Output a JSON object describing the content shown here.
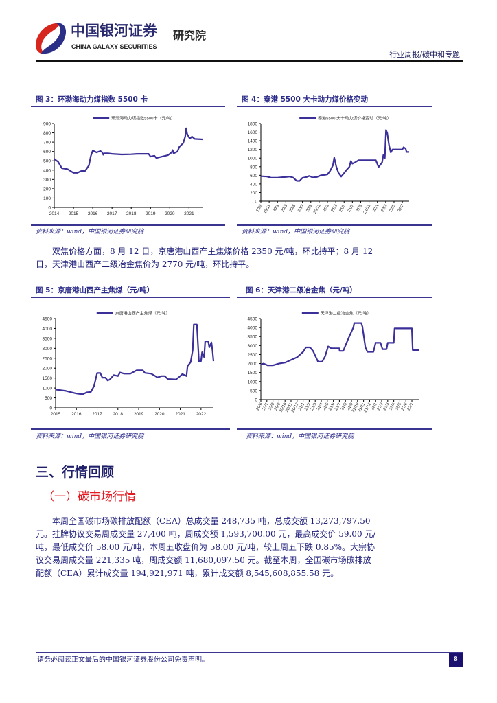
{
  "header": {
    "brand_cn": "中国银河证券",
    "brand_en": "CHINA GALAXY SECURITIES",
    "institute": "研究院",
    "report_tag": "行业周报/碳中和专题"
  },
  "figures": [
    {
      "title": "图 3：环渤海动力煤指数 5500 卡",
      "source": "资料来源：wind，中国银河证券研究院"
    },
    {
      "title": "图 4：秦港 5500 大卡动力煤价格变动",
      "source": "资料来源：wind，中国银河证券研究院"
    },
    {
      "title": "图 5：京唐港山西产主焦煤（元/吨）",
      "source": "资料来源：wind，中国银河证券研究院"
    },
    {
      "title": "图 6：天津港二级冶金焦（元/吨）",
      "source": "资料来源：wind，中国银河证券研究院"
    }
  ],
  "text": {
    "coke_paragraph": "双焦价格方面，8 月 12 日，京唐港山西产主焦煤价格 2350 元/吨，环比持平；8 月 12 日，天津港山西产二级冶金焦价为 2770 元/吨，环比持平。",
    "section_heading": "三、行情回顾",
    "subsection_heading": "（一）碳市场行情",
    "carbon_paragraph": "本周全国碳市场碳排放配额（CEA）总成交量 248,735 吨，总成交额 13,273,797.50 元。挂牌协议交易周成交量 27,400 吨，周成交额 1,593,700.00 元，最高成交价 59.00 元/吨，最低成交价 58.00 元/吨，本周五收盘价为 58.00 元/吨，较上周五下跌 0.85%。大宗协议交易周成交量 221,335 吨，周成交额 11,680,097.50 元。截至本周，全国碳市场碳排放配额（CEA）累计成交量 194,921,971 吨，累计成交额 8,545,608,855.58 元。"
  },
  "footer": {
    "disclaimer": "请务必阅读正文最后的中国银河证券股份公司免责声明。",
    "page_number": "8"
  },
  "colors": {
    "line": "#3b2f9a",
    "rule": "#3a3590",
    "logo_red": "#d7261e",
    "logo_blue": "#2b2f86",
    "subheading_red": "#e31b23"
  },
  "chart_data": [
    {
      "type": "line",
      "x_type": "year",
      "legend": "环渤海动力煤指数5500卡（元/吨）",
      "legend_placement": "top",
      "xlim": [
        2014,
        2021.7
      ],
      "ylim": [
        0,
        900
      ],
      "yticks": [
        0,
        100,
        200,
        300,
        400,
        500,
        600,
        700,
        800,
        900
      ],
      "xticks": [
        "2014",
        "2015",
        "2016",
        "2017",
        "2018",
        "2019",
        "2020",
        "2021"
      ],
      "points": [
        [
          2014.0,
          520
        ],
        [
          2014.2,
          490
        ],
        [
          2014.4,
          420
        ],
        [
          2014.7,
          410
        ],
        [
          2015.0,
          370
        ],
        [
          2015.2,
          370
        ],
        [
          2015.4,
          390
        ],
        [
          2015.6,
          390
        ],
        [
          2015.8,
          450
        ],
        [
          2015.9,
          550
        ],
        [
          2016.0,
          610
        ],
        [
          2016.2,
          590
        ],
        [
          2016.4,
          605
        ],
        [
          2016.5,
          590
        ],
        [
          2016.55,
          565
        ],
        [
          2016.6,
          580
        ],
        [
          2016.8,
          580
        ],
        [
          2017.0,
          575
        ],
        [
          2017.5,
          568
        ],
        [
          2018.0,
          570
        ],
        [
          2018.3,
          575
        ],
        [
          2018.9,
          575
        ],
        [
          2019.0,
          545
        ],
        [
          2019.2,
          555
        ],
        [
          2019.3,
          530
        ],
        [
          2019.6,
          545
        ],
        [
          2019.9,
          560
        ],
        [
          2020.1,
          590
        ],
        [
          2020.15,
          615
        ],
        [
          2020.2,
          580
        ],
        [
          2020.4,
          600
        ],
        [
          2020.5,
          650
        ],
        [
          2020.7,
          690
        ],
        [
          2020.8,
          760
        ],
        [
          2020.85,
          850
        ],
        [
          2020.9,
          790
        ],
        [
          2021.0,
          750
        ],
        [
          2021.05,
          740
        ],
        [
          2021.15,
          760
        ],
        [
          2021.3,
          735
        ],
        [
          2021.7,
          730
        ]
      ]
    },
    {
      "type": "line",
      "x_type": "date",
      "legend": "秦港5500 大卡动力煤价格变动（元/吨）",
      "legend_placement": "top",
      "xlim": [
        "2019-09-01",
        "2022-08-20"
      ],
      "ylim": [
        0,
        1800
      ],
      "yticks": [
        0,
        200,
        400,
        600,
        800,
        1000,
        1200,
        1400,
        1600,
        1800
      ],
      "xticks": [
        [
          "19/9",
          "2019-09-01"
        ],
        [
          "19/11",
          "2019-11-01"
        ],
        [
          "20/1",
          "2020-01-01"
        ],
        [
          "20/3",
          "2020-03-01"
        ],
        [
          "20/5",
          "2020-05-01"
        ],
        [
          "20/7",
          "2020-07-01"
        ],
        [
          "20/9",
          "2020-09-01"
        ],
        [
          "20/11",
          "2020-11-01"
        ],
        [
          "21/1",
          "2021-01-01"
        ],
        [
          "21/3",
          "2021-03-01"
        ],
        [
          "21/5",
          "2021-05-01"
        ],
        [
          "21/7",
          "2021-07-01"
        ],
        [
          "21/9",
          "2021-09-01"
        ],
        [
          "21/11",
          "2021-11-01"
        ],
        [
          "22/1",
          "2022-01-01"
        ],
        [
          "22/3",
          "2022-03-01"
        ],
        [
          "22/5",
          "2022-05-01"
        ],
        [
          "22/7",
          "2022-07-01"
        ]
      ],
      "points": [
        [
          "2019-09-01",
          580
        ],
        [
          "2019-10-15",
          570
        ],
        [
          "2019-11-15",
          545
        ],
        [
          "2020-01-01",
          545
        ],
        [
          "2020-02-01",
          555
        ],
        [
          "2020-03-01",
          560
        ],
        [
          "2020-04-01",
          570
        ],
        [
          "2020-04-25",
          545
        ],
        [
          "2020-05-20",
          470
        ],
        [
          "2020-06-10",
          470
        ],
        [
          "2020-07-01",
          540
        ],
        [
          "2020-08-01",
          560
        ],
        [
          "2020-08-20",
          585
        ],
        [
          "2020-09-15",
          550
        ],
        [
          "2020-10-15",
          560
        ],
        [
          "2020-11-15",
          600
        ],
        [
          "2020-12-15",
          610
        ],
        [
          "2021-01-01",
          620
        ],
        [
          "2021-01-20",
          700
        ],
        [
          "2021-02-10",
          830
        ],
        [
          "2021-02-20",
          1010
        ],
        [
          "2021-03-05",
          800
        ],
        [
          "2021-03-20",
          660
        ],
        [
          "2021-04-10",
          570
        ],
        [
          "2021-05-01",
          650
        ],
        [
          "2021-05-20",
          730
        ],
        [
          "2021-06-10",
          800
        ],
        [
          "2021-06-20",
          930
        ],
        [
          "2021-07-01",
          870
        ],
        [
          "2021-07-20",
          900
        ],
        [
          "2021-08-15",
          950
        ],
        [
          "2021-12-20",
          950
        ],
        [
          "2022-01-10",
          790
        ],
        [
          "2022-02-05",
          900
        ],
        [
          "2022-02-15",
          1080
        ],
        [
          "2022-02-25",
          1000
        ],
        [
          "2022-03-03",
          1650
        ],
        [
          "2022-03-12",
          1580
        ],
        [
          "2022-03-25",
          1300
        ],
        [
          "2022-04-08",
          1130
        ],
        [
          "2022-04-20",
          1200
        ],
        [
          "2022-07-01",
          1200
        ],
        [
          "2022-07-10",
          1250
        ],
        [
          "2022-07-25",
          1220
        ],
        [
          "2022-08-01",
          1140
        ],
        [
          "2022-08-20",
          1140
        ]
      ]
    },
    {
      "type": "line",
      "x_type": "year",
      "legend": "京唐港山西产主焦煤（元/吨）",
      "legend_placement": "top",
      "xlim": [
        2015,
        2022.6
      ],
      "ylim": [
        0,
        4500
      ],
      "yticks": [
        0,
        500,
        1000,
        1500,
        2000,
        2500,
        3000,
        3500,
        4000,
        4500
      ],
      "xticks": [
        "2015",
        "2016",
        "2017",
        "2018",
        "2019",
        "2020",
        "2021",
        "2022"
      ],
      "points": [
        [
          2015.0,
          920
        ],
        [
          2015.5,
          850
        ],
        [
          2016.0,
          720
        ],
        [
          2016.3,
          680
        ],
        [
          2016.5,
          780
        ],
        [
          2016.7,
          800
        ],
        [
          2016.85,
          1100
        ],
        [
          2017.0,
          1750
        ],
        [
          2017.15,
          1750
        ],
        [
          2017.25,
          1520
        ],
        [
          2017.4,
          1520
        ],
        [
          2017.5,
          1380
        ],
        [
          2017.6,
          1420
        ],
        [
          2017.8,
          1650
        ],
        [
          2018.0,
          1600
        ],
        [
          2018.1,
          1780
        ],
        [
          2018.3,
          1720
        ],
        [
          2018.6,
          1720
        ],
        [
          2018.9,
          1890
        ],
        [
          2019.2,
          1890
        ],
        [
          2019.3,
          1760
        ],
        [
          2019.6,
          1720
        ],
        [
          2019.8,
          1600
        ],
        [
          2019.9,
          1530
        ],
        [
          2020.1,
          1600
        ],
        [
          2020.25,
          1600
        ],
        [
          2020.4,
          1450
        ],
        [
          2020.8,
          1430
        ],
        [
          2021.0,
          1600
        ],
        [
          2021.1,
          1700
        ],
        [
          2021.3,
          1600
        ],
        [
          2021.35,
          2100
        ],
        [
          2021.5,
          2300
        ],
        [
          2021.6,
          2900
        ],
        [
          2021.65,
          4200
        ],
        [
          2021.8,
          4200
        ],
        [
          2021.9,
          2350
        ],
        [
          2022.0,
          2350
        ],
        [
          2022.05,
          2800
        ],
        [
          2022.15,
          2550
        ],
        [
          2022.2,
          3350
        ],
        [
          2022.35,
          3350
        ],
        [
          2022.4,
          3050
        ],
        [
          2022.5,
          3300
        ],
        [
          2022.55,
          2900
        ],
        [
          2022.6,
          2350
        ]
      ]
    },
    {
      "type": "line",
      "x_type": "date",
      "legend": "天津港二级冶金焦（元/吨）",
      "legend_placement": "top",
      "xlim": [
        "2020-06-01",
        "2022-08-05"
      ],
      "ylim": [
        0,
        4500
      ],
      "yticks": [
        0,
        500,
        1000,
        1500,
        2000,
        2500,
        3000,
        3500,
        4000,
        4500
      ],
      "xticks": [
        [
          "20/6",
          "2020-06-01"
        ],
        [
          "20/7",
          "2020-07-01"
        ],
        [
          "20/8",
          "2020-08-01"
        ],
        [
          "20/9",
          "2020-09-01"
        ],
        [
          "20/10",
          "2020-10-01"
        ],
        [
          "20/11",
          "2020-11-01"
        ],
        [
          "20/12",
          "2020-12-01"
        ],
        [
          "21/1",
          "2021-01-01"
        ],
        [
          "21/2",
          "2021-02-01"
        ],
        [
          "21/3",
          "2021-03-01"
        ],
        [
          "21/4",
          "2021-04-01"
        ],
        [
          "21/5",
          "2021-05-01"
        ],
        [
          "21/6",
          "2021-06-01"
        ],
        [
          "21/7",
          "2021-07-01"
        ],
        [
          "21/8",
          "2021-08-01"
        ],
        [
          "21/9",
          "2021-09-01"
        ],
        [
          "21/10",
          "2021-10-01"
        ],
        [
          "21/11",
          "2021-11-01"
        ],
        [
          "21/12",
          "2021-12-01"
        ],
        [
          "22/1",
          "2022-01-01"
        ],
        [
          "22/2",
          "2022-02-01"
        ],
        [
          "22/3",
          "2022-03-01"
        ],
        [
          "22/4",
          "2022-04-01"
        ],
        [
          "22/5",
          "2022-05-01"
        ],
        [
          "22/6",
          "2022-06-01"
        ],
        [
          "22/7",
          "2022-07-01"
        ]
      ],
      "points": [
        [
          "2020-06-01",
          1950
        ],
        [
          "2020-06-15",
          2000
        ],
        [
          "2020-07-05",
          1900
        ],
        [
          "2020-08-01",
          1900
        ],
        [
          "2020-09-01",
          2000
        ],
        [
          "2020-10-01",
          2050
        ],
        [
          "2020-11-01",
          2200
        ],
        [
          "2020-12-01",
          2350
        ],
        [
          "2021-01-01",
          2650
        ],
        [
          "2021-01-15",
          2900
        ],
        [
          "2021-02-05",
          2900
        ],
        [
          "2021-02-20",
          2700
        ],
        [
          "2021-03-15",
          2100
        ],
        [
          "2021-04-05",
          2100
        ],
        [
          "2021-04-20",
          2400
        ],
        [
          "2021-05-05",
          2950
        ],
        [
          "2021-05-20",
          2850
        ],
        [
          "2021-07-01",
          2850
        ],
        [
          "2021-07-02",
          2700
        ],
        [
          "2021-07-20",
          2700
        ],
        [
          "2021-08-01",
          3000
        ],
        [
          "2021-08-20",
          3500
        ],
        [
          "2021-09-10",
          4000
        ],
        [
          "2021-09-15",
          4250
        ],
        [
          "2021-10-20",
          4250
        ],
        [
          "2021-10-25",
          4050
        ],
        [
          "2021-11-10",
          2900
        ],
        [
          "2021-11-20",
          2650
        ],
        [
          "2021-12-20",
          2650
        ],
        [
          "2022-01-01",
          3150
        ],
        [
          "2022-01-25",
          3150
        ],
        [
          "2022-02-05",
          2800
        ],
        [
          "2022-02-25",
          2800
        ],
        [
          "2022-03-01",
          3150
        ],
        [
          "2022-04-01",
          3150
        ],
        [
          "2022-04-05",
          3950
        ],
        [
          "2022-07-01",
          3950
        ],
        [
          "2022-07-05",
          2750
        ],
        [
          "2022-08-05",
          2750
        ]
      ]
    }
  ]
}
